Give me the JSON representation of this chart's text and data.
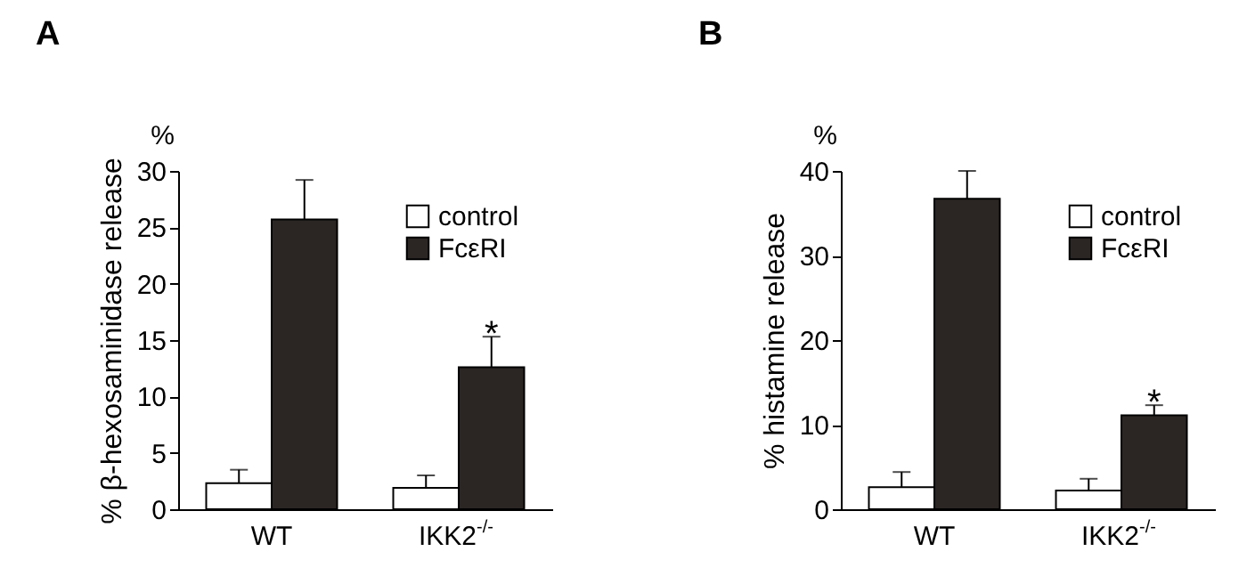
{
  "chart_data": [
    {
      "type": "bar",
      "title": "A",
      "ylabel": "% β-hexosaminidase release",
      "categories": [
        "WT",
        "IKK2$^{-/-}$"
      ],
      "series": [
        {
          "name": "control",
          "color": "#ffffff",
          "values": [
            2.3,
            1.9
          ],
          "errors": [
            [
              2.3,
              3.5
            ],
            [
              1.9,
              3.0
            ]
          ]
        },
        {
          "name": "FcεRI",
          "color": "#2b2624",
          "values": [
            25.7,
            12.6
          ],
          "errors": [
            [
              25.7,
              29.2
            ],
            [
              12.6,
              15.3
            ]
          ]
        }
      ],
      "ylim": [
        0,
        30
      ],
      "yticks": [
        0,
        5,
        10,
        15,
        20,
        25,
        30
      ],
      "grid": false,
      "legend": "top right",
      "annotations": [
        "%",
        "*"
      ]
    },
    {
      "type": "bar",
      "title": "B",
      "ylabel": "% histamine release",
      "categories": [
        "WT",
        "IKK2$^{-/-}$"
      ],
      "series": [
        {
          "name": "control",
          "color": "#ffffff",
          "values": [
            2.6,
            2.2
          ],
          "errors": [
            [
              2.6,
              4.4
            ],
            [
              2.2,
              3.6
            ]
          ]
        },
        {
          "name": "FcεRI",
          "color": "#2b2624",
          "values": [
            36.7,
            11.1
          ],
          "errors": [
            [
              36.7,
              40.0
            ],
            [
              11.1,
              12.3
            ]
          ]
        }
      ],
      "ylim": [
        0,
        40
      ],
      "yticks": [
        0,
        10,
        20,
        30,
        40
      ],
      "grid": false,
      "legend": "top right",
      "annotations": [
        "%",
        "*"
      ]
    }
  ]
}
